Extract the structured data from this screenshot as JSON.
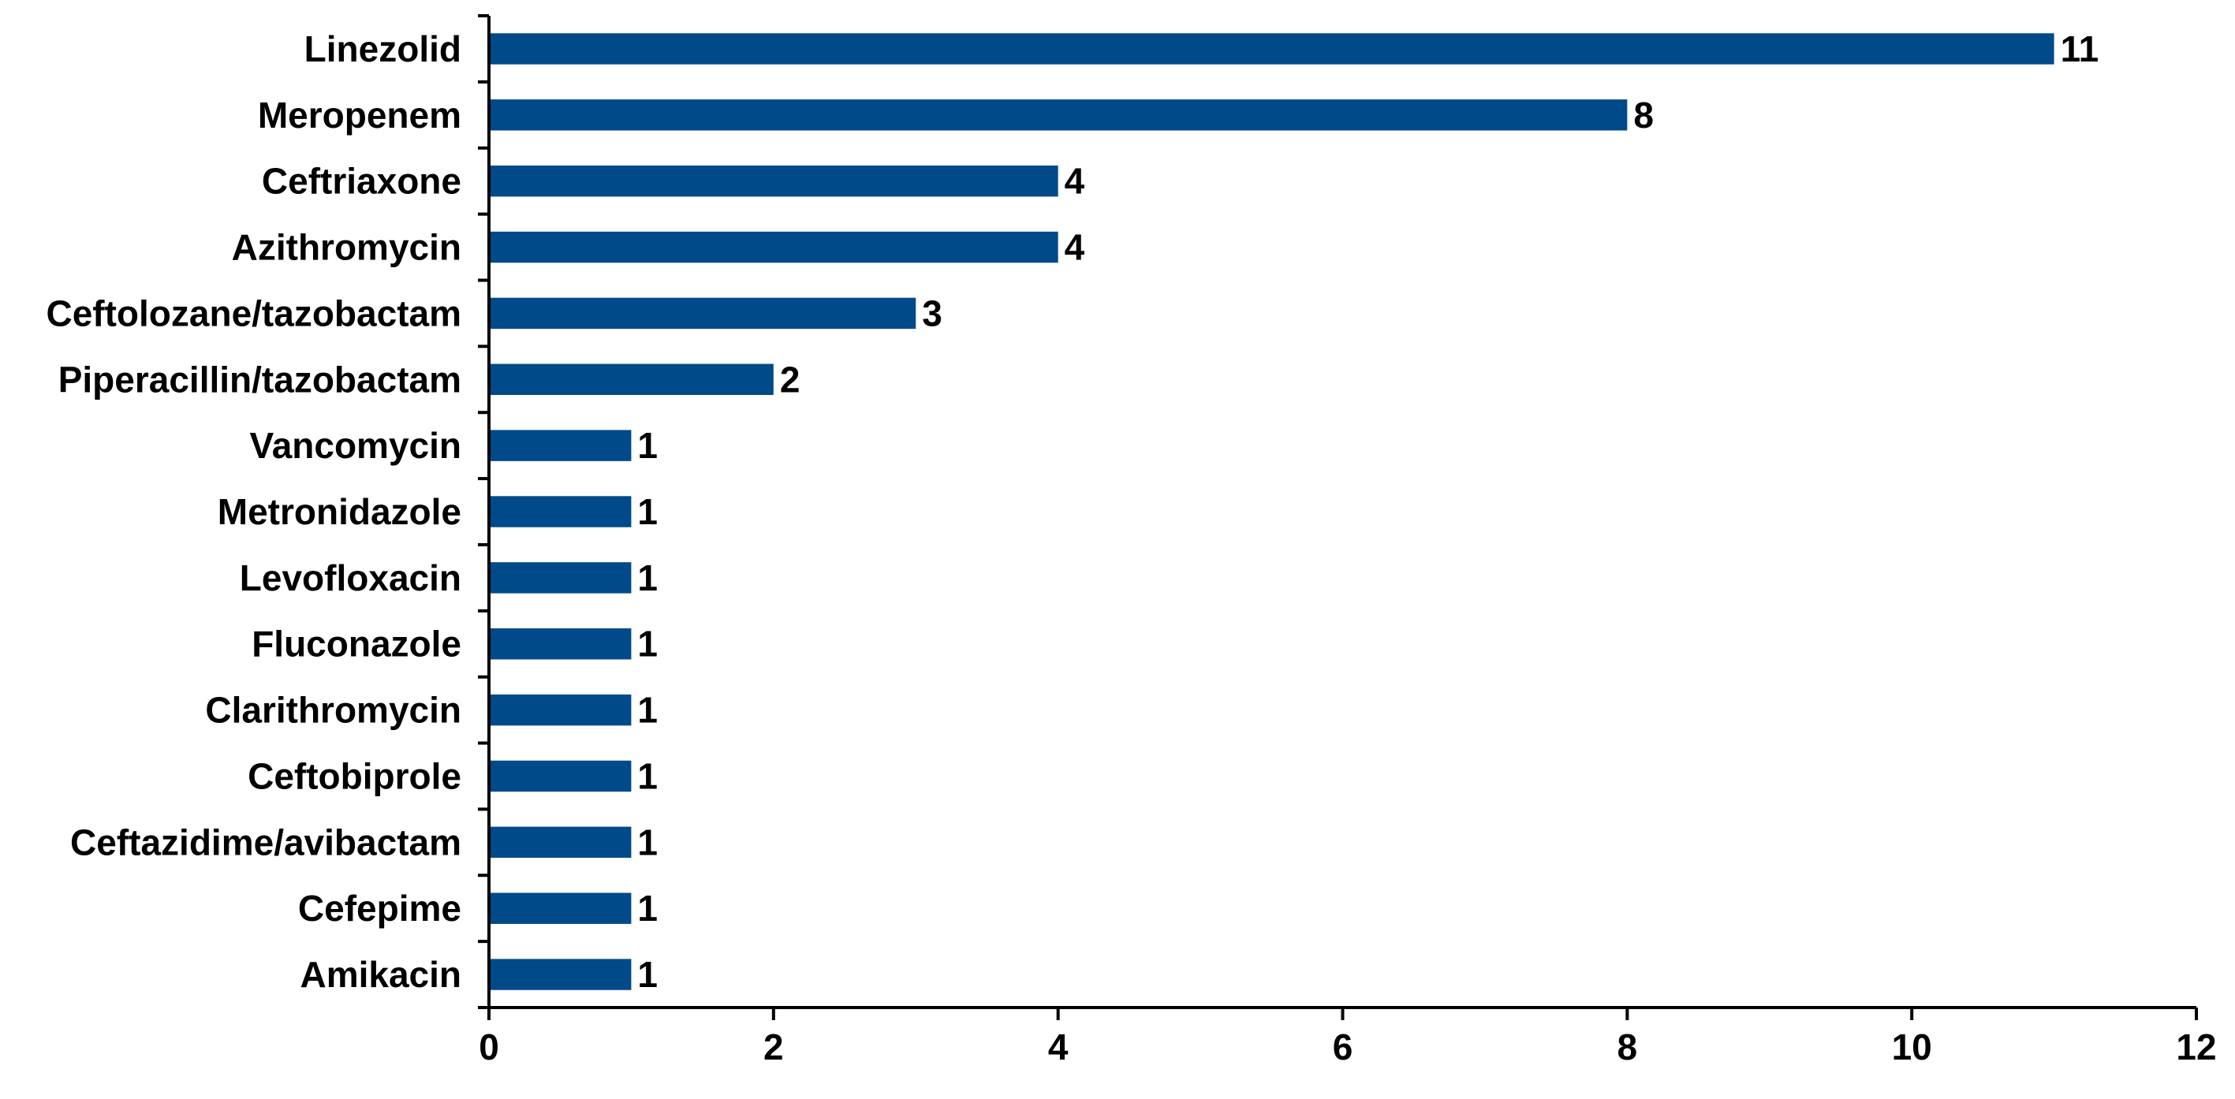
{
  "chart_data": {
    "type": "bar",
    "orientation": "horizontal",
    "categories": [
      "Linezolid",
      "Meropenem",
      "Ceftriaxone",
      "Azithromycin",
      "Ceftolozane/tazobactam",
      "Piperacillin/tazobactam",
      "Vancomycin",
      "Metronidazole",
      "Levofloxacin",
      "Fluconazole",
      "Clarithromycin",
      "Ceftobiprole",
      "Ceftazidime/avibactam",
      "Cefepime",
      "Amikacin"
    ],
    "values": [
      11,
      8,
      4,
      4,
      3,
      2,
      1,
      1,
      1,
      1,
      1,
      1,
      1,
      1,
      1
    ],
    "data_labels": [
      "11",
      "8",
      "4",
      "4",
      "3",
      "2",
      "1",
      "1",
      "1",
      "1",
      "1",
      "1",
      "1",
      "1",
      "1"
    ],
    "title": "",
    "xlabel": "",
    "ylabel": "",
    "xlim": [
      0,
      12
    ],
    "xticks": [
      0,
      2,
      4,
      6,
      8,
      10,
      12
    ],
    "xtick_labels": [
      "0",
      "2",
      "4",
      "6",
      "8",
      "10",
      "12"
    ],
    "grid": false,
    "legend": "none",
    "bar_color": "#004a8a"
  }
}
